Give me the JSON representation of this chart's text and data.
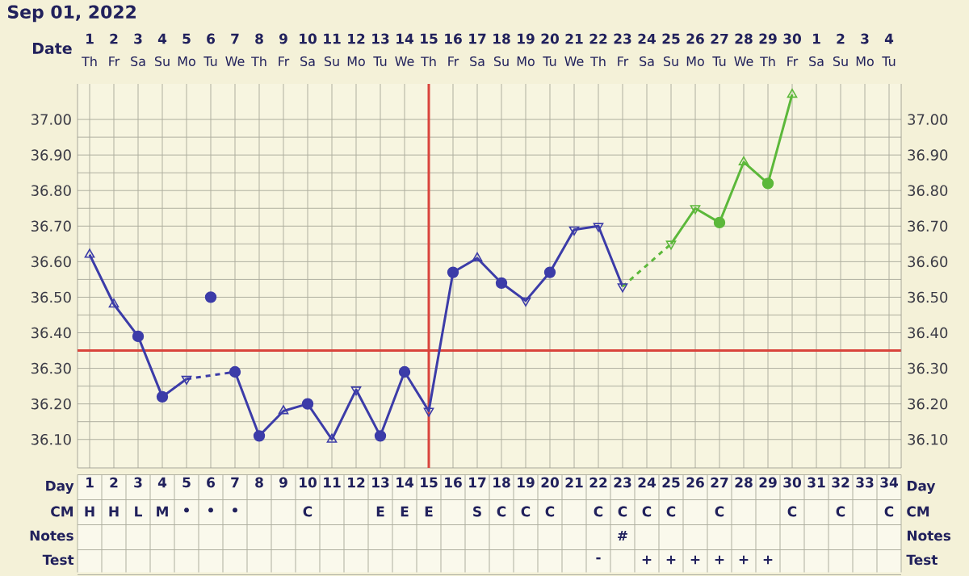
{
  "chart_data": {
    "type": "line",
    "title": "Sep 01, 2022",
    "x2label": "Date",
    "categories": [
      "1",
      "2",
      "3",
      "4",
      "5",
      "6",
      "7",
      "8",
      "9",
      "10",
      "11",
      "12",
      "13",
      "14",
      "15",
      "16",
      "17",
      "18",
      "19",
      "20",
      "21",
      "22",
      "23",
      "24",
      "25",
      "26",
      "27",
      "28",
      "29",
      "30",
      "31",
      "32",
      "33",
      "34"
    ],
    "x2lim": [
      "2022-08-31T12:00",
      "2022-10-04T12:00"
    ],
    "x2ticks": [
      {
        "value": "2022-09-01",
        "label": "1"
      },
      {
        "value": "2022-09-02",
        "label": "2"
      },
      {
        "value": "2022-09-03",
        "label": "3"
      },
      {
        "value": "2022-09-04",
        "label": "4"
      },
      {
        "value": "2022-09-05",
        "label": "5"
      },
      {
        "value": "2022-09-06",
        "label": "6"
      },
      {
        "value": "2022-09-07",
        "label": "7"
      },
      {
        "value": "2022-09-08",
        "label": "8"
      },
      {
        "value": "2022-09-09",
        "label": "9"
      },
      {
        "value": "2022-09-10",
        "label": "10"
      },
      {
        "value": "2022-09-11",
        "label": "11"
      },
      {
        "value": "2022-09-12",
        "label": "12"
      },
      {
        "value": "2022-09-13",
        "label": "13"
      },
      {
        "value": "2022-09-14",
        "label": "14"
      },
      {
        "value": "2022-09-15",
        "label": "15"
      },
      {
        "value": "2022-09-16",
        "label": "16"
      },
      {
        "value": "2022-09-17",
        "label": "17"
      },
      {
        "value": "2022-09-18",
        "label": "18"
      },
      {
        "value": "2022-09-19",
        "label": "19"
      },
      {
        "value": "2022-09-20",
        "label": "20"
      },
      {
        "value": "2022-09-21",
        "label": "21"
      },
      {
        "value": "2022-09-22",
        "label": "22"
      },
      {
        "value": "2022-09-23",
        "label": "23"
      },
      {
        "value": "2022-09-24",
        "label": "24"
      },
      {
        "value": "2022-09-25",
        "label": "25"
      },
      {
        "value": "2022-09-26",
        "label": "26"
      },
      {
        "value": "2022-09-27",
        "label": "27"
      },
      {
        "value": "2022-09-28",
        "label": "28"
      },
      {
        "value": "2022-09-29",
        "label": "29"
      },
      {
        "value": "2022-09-30",
        "label": "30"
      },
      {
        "value": "2022-10-01",
        "label": "1"
      },
      {
        "value": "2022-10-02",
        "label": "2"
      },
      {
        "value": "2022-10-03",
        "label": "3"
      },
      {
        "value": "2022-10-04",
        "label": "4"
      }
    ],
    "ylim": [
      36.02,
      37.1
    ],
    "yticks": [
      {
        "value": 36.1,
        "label": "36.10"
      },
      {
        "value": 36.2,
        "label": "36.20"
      },
      {
        "value": 36.3,
        "label": "36.30"
      },
      {
        "value": 36.4,
        "label": "36.40"
      },
      {
        "value": 36.5,
        "label": "36.50"
      },
      {
        "value": 36.6,
        "label": "36.60"
      },
      {
        "value": 36.7,
        "label": "36.70"
      },
      {
        "value": 36.8,
        "label": "36.80"
      },
      {
        "value": 36.9,
        "label": "36.90"
      },
      {
        "value": 37.0,
        "label": "37.00"
      }
    ],
    "y2lim": [
      36.02,
      37.1
    ],
    "y2ticks": [
      {
        "value": 36.1,
        "label": "36.10"
      },
      {
        "value": 36.2,
        "label": "36.20"
      },
      {
        "value": 36.3,
        "label": "36.30"
      },
      {
        "value": 36.4,
        "label": "36.40"
      },
      {
        "value": 36.5,
        "label": "36.50"
      },
      {
        "value": 36.6,
        "label": "36.60"
      },
      {
        "value": 36.7,
        "label": "36.70"
      },
      {
        "value": 36.8,
        "label": "36.80"
      },
      {
        "value": 36.9,
        "label": "36.90"
      },
      {
        "value": 37.0,
        "label": "37.00"
      }
    ],
    "grid": true,
    "ref_lines": [
      {
        "axis": "y",
        "value": 36.35,
        "color": "#d9443c"
      },
      {
        "axis": "x",
        "value": "15",
        "color": "#d9443c"
      }
    ],
    "series": [
      {
        "color": "#3c3ca8",
        "marker": "none",
        "line_style": "solid",
        "values": [
          36.62,
          36.48,
          36.39,
          36.22,
          36.27,
          null,
          null,
          null,
          null,
          null,
          null,
          null,
          null,
          null,
          null,
          null,
          null,
          null,
          null,
          null,
          null,
          null,
          null,
          null,
          null,
          null,
          null,
          null,
          null,
          null,
          null,
          null,
          null,
          null
        ]
      },
      {
        "color": "#3c3ca8",
        "marker": "none",
        "line_style": "dashed",
        "values": [
          null,
          null,
          null,
          null,
          36.27,
          null,
          36.29,
          null,
          null,
          null,
          null,
          null,
          null,
          null,
          null,
          null,
          null,
          null,
          null,
          null,
          null,
          null,
          null,
          null,
          null,
          null,
          null,
          null,
          null,
          null,
          null,
          null,
          null,
          null
        ]
      },
      {
        "color": "#3c3ca8",
        "marker": "none",
        "line_style": "solid",
        "values": [
          null,
          null,
          null,
          null,
          null,
          null,
          36.29,
          36.11,
          36.18,
          36.2,
          36.1,
          36.24,
          36.11,
          36.29,
          36.18,
          36.57,
          36.61,
          36.54,
          36.49,
          36.57,
          36.69,
          36.7,
          36.53,
          null,
          null,
          null,
          null,
          null,
          null,
          null,
          null,
          null,
          null,
          null
        ]
      },
      {
        "color": "#5cb83a",
        "marker": "none",
        "line_style": "dashed",
        "values": [
          null,
          null,
          null,
          null,
          null,
          null,
          null,
          null,
          null,
          null,
          null,
          null,
          null,
          null,
          null,
          null,
          null,
          null,
          null,
          null,
          null,
          null,
          36.53,
          null,
          36.65,
          null,
          null,
          null,
          null,
          null,
          null,
          null,
          null,
          null
        ]
      },
      {
        "color": "#5cb83a",
        "marker": "none",
        "line_style": "solid",
        "values": [
          null,
          null,
          null,
          null,
          null,
          null,
          null,
          null,
          null,
          null,
          null,
          null,
          null,
          null,
          null,
          null,
          null,
          null,
          null,
          null,
          null,
          null,
          null,
          null,
          36.65,
          36.75,
          36.71,
          36.88,
          36.82,
          37.07,
          null,
          null,
          null,
          null
        ]
      },
      {
        "type": "scatter",
        "color": "#3c3ca8",
        "marker": "circle",
        "values": [
          null,
          null,
          36.39,
          36.22,
          null,
          36.5,
          36.29,
          36.11,
          null,
          36.2,
          null,
          null,
          36.11,
          36.29,
          null,
          36.57,
          null,
          36.54,
          null,
          36.57,
          null,
          null,
          null,
          null,
          null,
          null,
          null,
          null,
          null,
          null,
          null,
          null,
          null,
          null
        ]
      },
      {
        "type": "scatter",
        "color": "#3c3ca8",
        "marker": "triangle",
        "values": [
          36.62,
          36.48,
          null,
          null,
          null,
          null,
          null,
          null,
          36.18,
          null,
          36.1,
          null,
          null,
          null,
          null,
          null,
          36.61,
          null,
          null,
          null,
          null,
          null,
          null,
          null,
          null,
          null,
          null,
          null,
          null,
          null,
          null,
          null,
          null,
          null
        ]
      },
      {
        "type": "scatter",
        "color": "#3c3ca8",
        "marker": "triangle-down",
        "values": [
          null,
          null,
          null,
          null,
          36.27,
          null,
          null,
          null,
          null,
          null,
          null,
          36.24,
          null,
          null,
          36.18,
          null,
          null,
          null,
          36.49,
          null,
          36.69,
          36.7,
          36.53,
          null,
          null,
          null,
          null,
          null,
          null,
          null,
          null,
          null,
          null,
          null
        ]
      },
      {
        "type": "scatter",
        "color": "#5cb83a",
        "marker": "circle",
        "values": [
          null,
          null,
          null,
          null,
          null,
          null,
          null,
          null,
          null,
          null,
          null,
          null,
          null,
          null,
          null,
          null,
          null,
          null,
          null,
          null,
          null,
          null,
          null,
          null,
          null,
          null,
          36.71,
          null,
          36.82,
          null,
          null,
          null,
          null,
          null
        ]
      },
      {
        "type": "scatter",
        "color": "#5cb83a",
        "marker": "triangle",
        "values": [
          null,
          null,
          null,
          null,
          null,
          null,
          null,
          null,
          null,
          null,
          null,
          null,
          null,
          null,
          null,
          null,
          null,
          null,
          null,
          null,
          null,
          null,
          null,
          null,
          null,
          null,
          null,
          36.88,
          null,
          37.07,
          null,
          null,
          null,
          null
        ]
      },
      {
        "type": "scatter",
        "color": "#5cb83a",
        "marker": "triangle-down",
        "values": [
          null,
          null,
          null,
          null,
          null,
          null,
          null,
          null,
          null,
          null,
          null,
          null,
          null,
          null,
          null,
          null,
          null,
          null,
          null,
          null,
          null,
          null,
          null,
          null,
          36.65,
          36.75,
          null,
          null,
          null,
          null,
          null,
          null,
          null,
          null
        ]
      }
    ],
    "annotations": [
      null,
      "Th",
      "Fr",
      "Sa",
      "Su",
      "Mo",
      "Tu",
      "We",
      "Th",
      "Fr",
      "Sa",
      "Su",
      "Mo",
      "Tu",
      "We",
      "Th",
      "Fr",
      "Sa",
      "Su",
      "Mo",
      "Tu",
      "We",
      "Th",
      "Fr",
      "Sa",
      "Su",
      "Mo",
      "Tu",
      "We",
      "Th",
      "Fr",
      "Sa",
      "Su",
      "Mo",
      "Tu",
      "Day",
      null,
      null,
      null,
      null,
      null,
      null,
      null,
      null,
      null,
      null,
      null,
      null,
      null,
      null,
      null,
      null,
      null,
      null,
      null,
      null,
      null,
      null,
      null,
      null,
      null,
      null,
      null,
      null,
      null,
      null,
      null,
      null,
      null,
      null,
      "CM",
      "H",
      "H",
      "L",
      "M",
      "•",
      "•",
      "•",
      null,
      null,
      "C",
      null,
      null,
      "E",
      "E",
      "E",
      null,
      "S",
      "C",
      "C",
      "C",
      null,
      "C",
      "C",
      "C",
      "C",
      null,
      "C",
      null,
      null,
      "C",
      null,
      "C",
      null,
      "C",
      "Notes",
      null,
      null,
      null,
      null,
      null,
      null,
      null,
      null,
      null,
      null,
      null,
      null,
      null,
      null,
      null,
      null,
      null,
      null,
      null,
      null,
      null,
      null,
      "#",
      null,
      null,
      null,
      null,
      null,
      null,
      null,
      null,
      null,
      null,
      null,
      "Test",
      null,
      null,
      null,
      null,
      null,
      null,
      null,
      null,
      null,
      null,
      null,
      null,
      null,
      null,
      null,
      null,
      null,
      null,
      null,
      null,
      null,
      "-",
      null,
      "+",
      "+",
      "+",
      "+",
      "+",
      "+",
      null,
      null,
      null,
      null,
      null
    ]
  }
}
